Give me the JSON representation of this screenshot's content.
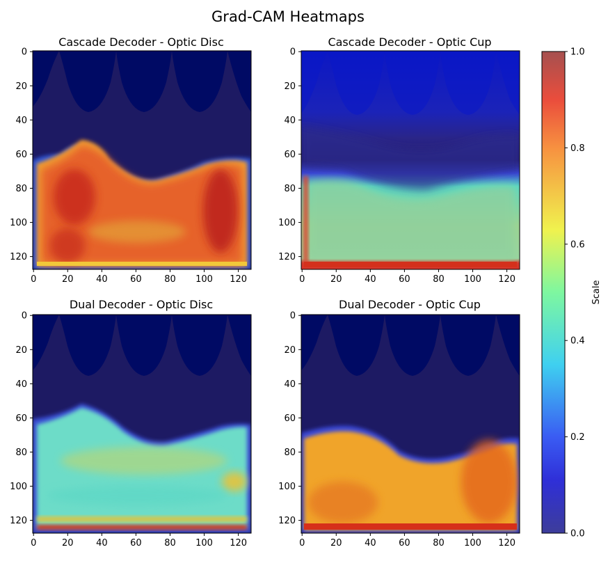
{
  "figure": {
    "suptitle": "Grad-CAM Heatmaps"
  },
  "chart_data": [
    {
      "type": "heatmap",
      "title": "Cascade Decoder - Optic Disc",
      "x_ticks": [
        "0",
        "20",
        "40",
        "60",
        "80",
        "100",
        "120"
      ],
      "y_ticks": [
        "0",
        "20",
        "40",
        "60",
        "80",
        "100",
        "120"
      ],
      "xlim": [
        0,
        127
      ],
      "ylim": [
        127,
        0
      ],
      "background_boundary_y": 60,
      "activation": {
        "peak": 0.85,
        "mean_in_region": 0.78,
        "background": 0.0
      }
    },
    {
      "type": "heatmap",
      "title": "Cascade Decoder - Optic Cup",
      "x_ticks": [
        "0",
        "20",
        "40",
        "60",
        "80",
        "100",
        "120"
      ],
      "y_ticks": [
        "0",
        "20",
        "40",
        "60",
        "80",
        "100",
        "120"
      ],
      "xlim": [
        0,
        127
      ],
      "ylim": [
        127,
        0
      ],
      "background_boundary_y": 75,
      "activation": {
        "peak": 0.95,
        "mean_in_region": 0.5,
        "background": 0.1
      }
    },
    {
      "type": "heatmap",
      "title": "Dual Decoder - Optic Disc",
      "x_ticks": [
        "0",
        "20",
        "40",
        "60",
        "80",
        "100",
        "120"
      ],
      "y_ticks": [
        "0",
        "20",
        "40",
        "60",
        "80",
        "100",
        "120"
      ],
      "xlim": [
        0,
        127
      ],
      "ylim": [
        127,
        0
      ],
      "background_boundary_y": 62,
      "activation": {
        "peak": 0.85,
        "mean_in_region": 0.5,
        "background": 0.0
      }
    },
    {
      "type": "heatmap",
      "title": "Dual Decoder - Optic Cup",
      "x_ticks": [
        "0",
        "20",
        "40",
        "60",
        "80",
        "100",
        "120"
      ],
      "y_ticks": [
        "0",
        "20",
        "40",
        "60",
        "80",
        "100",
        "120"
      ],
      "xlim": [
        0,
        127
      ],
      "ylim": [
        127,
        0
      ],
      "background_boundary_y": 72,
      "activation": {
        "peak": 0.85,
        "mean_in_region": 0.78,
        "background": 0.0
      }
    }
  ],
  "colorbar": {
    "label": "Scale",
    "ticks": [
      "0.0",
      "0.2",
      "0.4",
      "0.6",
      "0.8",
      "1.0"
    ],
    "range": [
      0,
      1
    ],
    "colormap": "jet"
  },
  "colors": {
    "background_navy": "#0a0a6e",
    "cam_red": "#d92a10",
    "cam_yellow": "#f2c51f",
    "cam_cyan": "#5fe0c8",
    "cam_blue": "#1d1dd6"
  }
}
